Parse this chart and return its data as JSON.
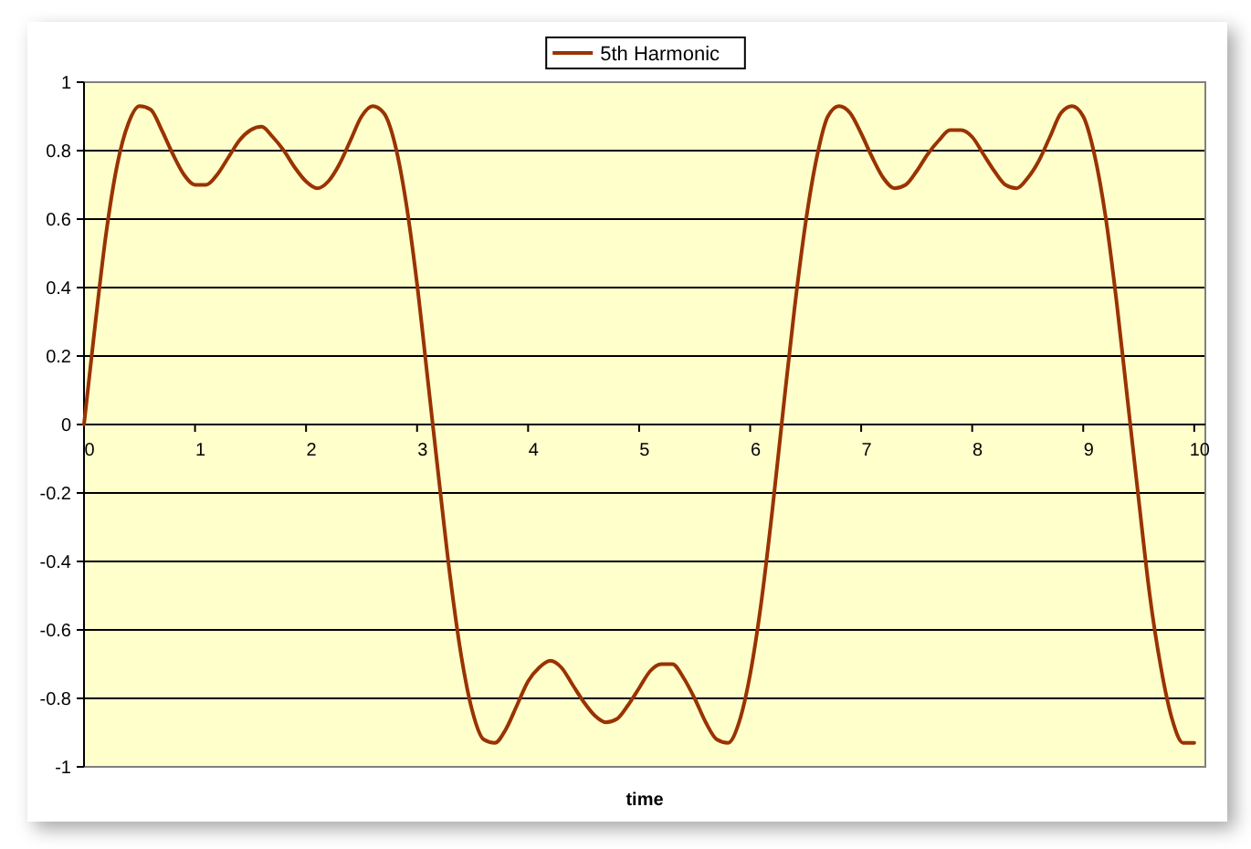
{
  "chart_data": {
    "type": "line",
    "xlabel": "time",
    "x": [
      0,
      0.1,
      0.2,
      0.3,
      0.4,
      0.5,
      0.6,
      0.7,
      0.8,
      0.9,
      1,
      1.1,
      1.2,
      1.3,
      1.4,
      1.5,
      1.6,
      1.7,
      1.8,
      1.9,
      2,
      2.1,
      2.2,
      2.3,
      2.4,
      2.5,
      2.6,
      2.7,
      2.8,
      2.9,
      3,
      3.1,
      3.2,
      3.3,
      3.4,
      3.5,
      3.6,
      3.7,
      3.8,
      3.9,
      4,
      4.1,
      4.2,
      4.3,
      4.4,
      4.5,
      4.6,
      4.7,
      4.8,
      4.9,
      5,
      5.1,
      5.2,
      5.3,
      5.4,
      5.5,
      5.6,
      5.7,
      5.8,
      5.9,
      6,
      6.1,
      6.2,
      6.3,
      6.4,
      6.5,
      6.6,
      6.7,
      6.8,
      6.9,
      7,
      7.1,
      7.2,
      7.3,
      7.4,
      7.5,
      7.6,
      7.7,
      7.8,
      7.9,
      8,
      8.1,
      8.2,
      8.3,
      8.4,
      8.5,
      8.6,
      8.7,
      8.8,
      8.9,
      9,
      9.1,
      9.2,
      9.3,
      9.4,
      9.5,
      9.6,
      9.7,
      9.8,
      9.9,
      10
    ],
    "series": [
      {
        "name": "5th Harmonic",
        "color": "#993300",
        "values": [
          0,
          0.29,
          0.56,
          0.76,
          0.88,
          0.93,
          0.92,
          0.86,
          0.79,
          0.73,
          0.7,
          0.7,
          0.73,
          0.78,
          0.83,
          0.86,
          0.87,
          0.84,
          0.8,
          0.75,
          0.71,
          0.69,
          0.71,
          0.76,
          0.83,
          0.9,
          0.93,
          0.91,
          0.82,
          0.65,
          0.41,
          0.12,
          -0.17,
          -0.45,
          -0.68,
          -0.84,
          -0.92,
          -0.93,
          -0.89,
          -0.82,
          -0.75,
          -0.71,
          -0.69,
          -0.71,
          -0.76,
          -0.81,
          -0.85,
          -0.87,
          -0.86,
          -0.82,
          -0.77,
          -0.72,
          -0.7,
          -0.7,
          -0.74,
          -0.8,
          -0.87,
          -0.92,
          -0.93,
          -0.87,
          -0.73,
          -0.52,
          -0.25,
          0.05,
          0.34,
          0.59,
          0.78,
          0.9,
          0.93,
          0.91,
          0.85,
          0.78,
          0.72,
          0.69,
          0.7,
          0.74,
          0.79,
          0.83,
          0.86,
          0.86,
          0.84,
          0.79,
          0.74,
          0.7,
          0.69,
          0.72,
          0.77,
          0.84,
          0.91,
          0.93,
          0.9,
          0.79,
          0.61,
          0.36,
          0.07,
          -0.22,
          -0.5,
          -0.71,
          -0.86,
          -0.93,
          -0.93
        ]
      }
    ],
    "xlim": [
      0,
      10.1
    ],
    "xticks": [
      0,
      1,
      2,
      3,
      4,
      5,
      6,
      7,
      8,
      9,
      10
    ],
    "ylim": [
      -1,
      1
    ],
    "yticks": [
      -1,
      -0.8,
      -0.6,
      -0.4,
      -0.2,
      0,
      0.2,
      0.4,
      0.6,
      0.8,
      1
    ],
    "grid": "y",
    "legend": "top",
    "marker": "none",
    "line_style": "solid"
  }
}
